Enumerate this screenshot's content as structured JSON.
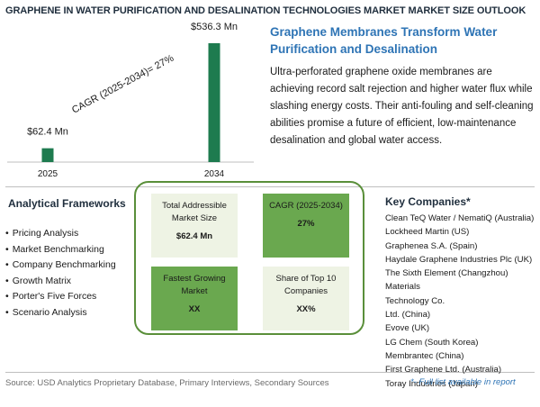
{
  "header": {
    "title": "GRAPHENE IN WATER PURIFICATION AND DESALINATION TECHNOLOGIES MARKET MARKET SIZE OUTLOOK"
  },
  "chart_data": {
    "type": "bar",
    "categories": [
      "2025",
      "2034"
    ],
    "values": [
      62.4,
      536.3
    ],
    "data_labels": [
      "$62.4 Mn",
      "$536.3 Mn"
    ],
    "annotation": "CAGR (2025-2034)=    27%",
    "bar_color": "#1e7b4f",
    "ylim": [
      0,
      536.3
    ],
    "grid": false,
    "legend": "none"
  },
  "story": {
    "title": "Graphene Membranes Transform Water Purification and Desalination",
    "body": "Ultra-perforated graphene oxide membranes are achieving record salt rejection and higher water flux while slashing energy costs. Their anti-fouling and self-cleaning abilities promise a future of efficient, low-maintenance desalination and global water access."
  },
  "frameworks": {
    "title": "Analytical Frameworks",
    "items": [
      "Pricing Analysis",
      "Market Benchmarking",
      "Company Benchmarking",
      "Growth Matrix",
      "Porter's Five Forces",
      "Scenario Analysis"
    ]
  },
  "metrics": {
    "tam_label": "Total Addressible Market Size",
    "tam_value": "$62.4 Mn",
    "cagr_label": "CAGR (2025-2034)",
    "cagr_value": "27%",
    "fastest_label": "Fastest Growing Market",
    "fastest_value": "XX",
    "share_label": "Share of Top 10 Companies",
    "share_value": "XX%"
  },
  "companies": {
    "title": "Key Companies*",
    "items": [
      "Clean TeQ Water / NematiQ (Australia)",
      "Lockheed Martin (US)",
      "Graphenea S.A. (Spain)",
      "Haydale Graphene Industries Plc (UK)",
      "The Sixth Element (Changzhou) Materials",
      "Technology Co.",
      "Ltd. (China)",
      "Evove (UK)",
      "LG Chem (South Korea)",
      "Membrantec (China)",
      "First Graphene Ltd. (Australia)",
      "Toray Industries (Japan)"
    ],
    "note": "*- Full list available in report"
  },
  "source": "Source: USD Analytics Proprietary Database, Primary Interviews, Secondary Sources",
  "colors": {
    "accent_blue": "#2e74b5",
    "green_dark": "#6aa84f",
    "green_light": "#eef3e4",
    "frame_green": "#5a8f3a"
  }
}
